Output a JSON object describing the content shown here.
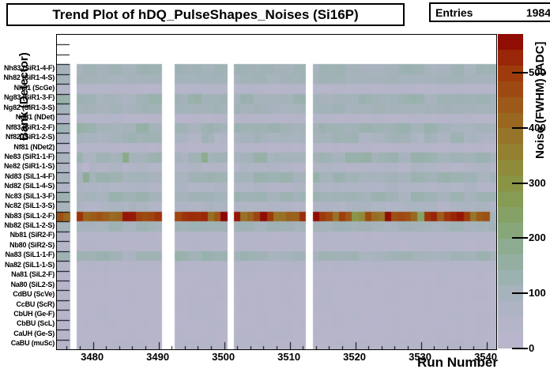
{
  "header": {
    "title": "Trend Plot of hDQ_PulseShapes_Noises (Si16P)",
    "stats": {
      "label": "Entries",
      "value": "1984"
    }
  },
  "axes": {
    "x": {
      "title": "Run Number",
      "min": 3474.5,
      "max": 3541.5,
      "major_ticks": [
        3480,
        3490,
        3500,
        3510,
        3520,
        3530,
        3540
      ],
      "minor_step": 2
    },
    "y": {
      "title": "Bank (Detector)",
      "empty_top_bins": 3
    },
    "z": {
      "title": "Noise (FWHM) [ADC]",
      "min": 0,
      "max": 570,
      "ticks": [
        0,
        100,
        200,
        300,
        400,
        500
      ],
      "n_blocks": 20
    }
  },
  "chart_data": {
    "type": "heatmap",
    "title": "Trend Plot of hDQ_PulseShapes_Noises (Si16P)",
    "entries": 1984,
    "xlabel": "Run Number",
    "ylabel": "Bank (Detector)",
    "zlabel": "Noise (FWHM) [ADC]",
    "x_range": [
      3474.5,
      3541.5
    ],
    "zlim": [
      0,
      570
    ],
    "missing_runs": [
      3477,
      3491,
      3492,
      3501,
      3513
    ],
    "rows": [
      {
        "label": "Nh83 (SiR1-4-F)",
        "bank": "Nh83",
        "detector": "SiR1-4-F",
        "base": 115,
        "amp": 22,
        "seed": 1
      },
      {
        "label": "Nh82 (SiR1-4-S)",
        "bank": "Nh82",
        "detector": "SiR1-4-S",
        "base": 104,
        "amp": 10,
        "seed": 2
      },
      {
        "label": "Nh81 (ScGe)",
        "bank": "Nh81",
        "detector": "ScGe",
        "base": 36,
        "amp": 8,
        "seed": 3
      },
      {
        "label": "Ng83 (SiR1-3-F)",
        "bank": "Ng83",
        "detector": "SiR1-3-F",
        "base": 116,
        "amp": 24,
        "seed": 4
      },
      {
        "label": "Ng82 (SiR1-3-S)",
        "bank": "Ng82",
        "detector": "SiR1-3-S",
        "base": 104,
        "amp": 10,
        "seed": 5
      },
      {
        "label": "Ng81 (NDet)",
        "bank": "Ng81",
        "detector": "NDet",
        "base": 36,
        "amp": 8,
        "seed": 6
      },
      {
        "label": "Nf83 (SiR1-2-F)",
        "bank": "Nf83",
        "detector": "SiR1-2-F",
        "base": 122,
        "amp": 28,
        "seed": 7
      },
      {
        "label": "Nf82 (SiR1-2-S)",
        "bank": "Nf82",
        "detector": "SiR1-2-S",
        "base": 92,
        "amp": 30,
        "seed": 8
      },
      {
        "label": "Nf81 (NDet2)",
        "bank": "Nf81",
        "detector": "NDet2",
        "base": 36,
        "amp": 8,
        "seed": 9
      },
      {
        "label": "Ne83 (SiR1-1-F)",
        "bank": "Ne83",
        "detector": "SiR1-1-F",
        "base": 116,
        "amp": 26,
        "seed": 10
      },
      {
        "label": "Ne82 (SiR1-1-S)",
        "bank": "Ne82",
        "detector": "SiR1-1-S",
        "base": 58,
        "amp": 16,
        "seed": 11
      },
      {
        "label": "Nd83 (SiL1-4-F)",
        "bank": "Nd83",
        "detector": "SiL1-4-F",
        "base": 112,
        "amp": 24,
        "seed": 12
      },
      {
        "label": "Nd82 (SiL1-4-S)",
        "bank": "Nd82",
        "detector": "SiL1-4-S",
        "base": 66,
        "amp": 14,
        "seed": 13
      },
      {
        "label": "Nc83 (SiL1-3-F)",
        "bank": "Nc83",
        "detector": "SiL1-3-F",
        "base": 114,
        "amp": 24,
        "seed": 14
      },
      {
        "label": "Nc82 (SiL1-3-S)",
        "bank": "Nc82",
        "detector": "SiL1-3-S",
        "base": 72,
        "amp": 22,
        "seed": 15
      },
      {
        "label": "Nb83 (SiL1-2-F)",
        "bank": "Nb83",
        "detector": "SiL1-2-F",
        "base": 470,
        "amp": 90,
        "seed": 16,
        "hot": true
      },
      {
        "label": "Nb82 (SiL1-2-S)",
        "bank": "Nb82",
        "detector": "SiL1-2-S",
        "base": 110,
        "amp": 14,
        "seed": 17
      },
      {
        "label": "Nb81 (SiR2-F)",
        "bank": "Nb81",
        "detector": "SiR2-F",
        "base": 40,
        "amp": 8,
        "seed": 18
      },
      {
        "label": "Nb80 (SiR2-S)",
        "bank": "Nb80",
        "detector": "SiR2-S",
        "base": 40,
        "amp": 8,
        "seed": 19
      },
      {
        "label": "Na83 (SiL1-1-F)",
        "bank": "Na83",
        "detector": "SiL1-1-F",
        "base": 112,
        "amp": 24,
        "seed": 20
      },
      {
        "label": "Na82 (SiL1-1-S)",
        "bank": "Na82",
        "detector": "SiL1-1-S",
        "base": 46,
        "amp": 10,
        "seed": 21
      },
      {
        "label": "Na81 (SiL2-F)",
        "bank": "Na81",
        "detector": "SiL2-F",
        "base": 30,
        "amp": 6,
        "seed": 22
      },
      {
        "label": "Na80 (SiL2-S)",
        "bank": "Na80",
        "detector": "SiL2-S",
        "base": 30,
        "amp": 6,
        "seed": 23
      },
      {
        "label": "CdBU (ScVe)",
        "bank": "CdBU",
        "detector": "ScVe",
        "base": 30,
        "amp": 6,
        "seed": 24
      },
      {
        "label": "CcBU (ScR)",
        "bank": "CcBU",
        "detector": "ScR",
        "base": 30,
        "amp": 6,
        "seed": 25
      },
      {
        "label": "CbUH (Ge-F)",
        "bank": "CbUH",
        "detector": "Ge-F",
        "base": 30,
        "amp": 6,
        "seed": 26
      },
      {
        "label": "CbBU (ScL)",
        "bank": "CbBU",
        "detector": "ScL",
        "base": 30,
        "amp": 6,
        "seed": 27
      },
      {
        "label": "CaUH (Ge-S)",
        "bank": "CaUH",
        "detector": "Ge-S",
        "base": 30,
        "amp": 6,
        "seed": 28
      },
      {
        "label": "CaBU (muSc)",
        "bank": "CaBU",
        "detector": "muSc",
        "base": 36,
        "amp": 10,
        "seed": 29
      }
    ],
    "hot_row": "Nb83 (SiL1-2-F)",
    "hot_overrides": {
      "3479": 420,
      "3485": 545,
      "3495": 520,
      "3500": 565,
      "3520": 290,
      "3521": 330,
      "3525": 555,
      "3530": 240,
      "3536": 545,
      "3541": 100
    },
    "cell_overrides": [
      {
        "row": 9,
        "run": 3485,
        "value": 195
      },
      {
        "row": 9,
        "run": 3497,
        "value": 185
      },
      {
        "row": 10,
        "run": 3479,
        "value": 4
      },
      {
        "row": 11,
        "run": 3479,
        "value": 180
      }
    ],
    "palette": [
      [
        0,
        "#bbb5ce"
      ],
      [
        60,
        "#b1b5c6"
      ],
      [
        100,
        "#a6b3bc"
      ],
      [
        140,
        "#98b1ac"
      ],
      [
        180,
        "#8eac94"
      ],
      [
        220,
        "#86a676"
      ],
      [
        260,
        "#859d58"
      ],
      [
        300,
        "#8a9444"
      ],
      [
        340,
        "#918736"
      ],
      [
        380,
        "#96762a"
      ],
      [
        420,
        "#9a641e"
      ],
      [
        460,
        "#9d5014"
      ],
      [
        500,
        "#9e3a0c"
      ],
      [
        535,
        "#982008"
      ],
      [
        570,
        "#8b0000"
      ]
    ]
  }
}
